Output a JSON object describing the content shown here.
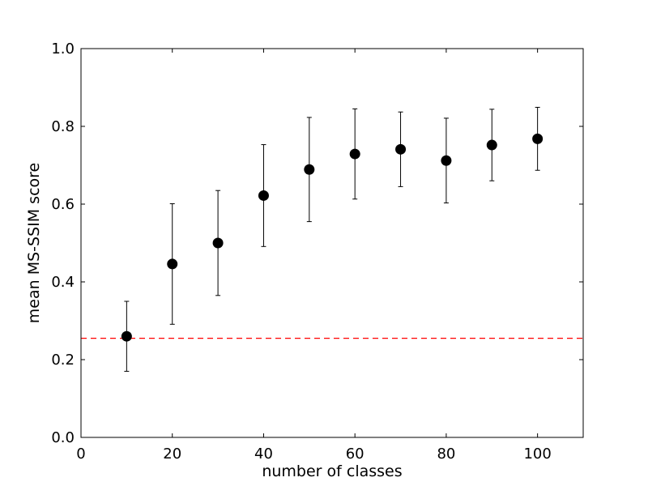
{
  "chart_data": {
    "type": "scatter",
    "title": "",
    "xlabel": "number of classes",
    "ylabel": "mean MS-SSIM score",
    "xlim": [
      0,
      110
    ],
    "ylim": [
      0.0,
      1.0
    ],
    "xticks": [
      0,
      20,
      40,
      60,
      80,
      100
    ],
    "yticks": [
      0.0,
      0.2,
      0.4,
      0.6,
      0.8,
      1.0
    ],
    "xtick_labels": [
      "0",
      "20",
      "40",
      "60",
      "80",
      "100"
    ],
    "ytick_labels": [
      "0.0",
      "0.2",
      "0.4",
      "0.6",
      "0.8",
      "1.0"
    ],
    "grid": false,
    "series": [
      {
        "x": [
          10,
          20,
          30,
          40,
          50,
          60,
          70,
          80,
          90,
          100
        ],
        "y": [
          0.26,
          0.446,
          0.5,
          0.622,
          0.689,
          0.729,
          0.741,
          0.712,
          0.752,
          0.768
        ],
        "error": [
          0.09,
          0.155,
          0.135,
          0.131,
          0.134,
          0.116,
          0.096,
          0.109,
          0.092,
          0.081
        ],
        "color": "#000000",
        "marker": "circle"
      }
    ],
    "reference_line": {
      "y": 0.255,
      "color": "#ff0000",
      "style": "dashed"
    }
  }
}
